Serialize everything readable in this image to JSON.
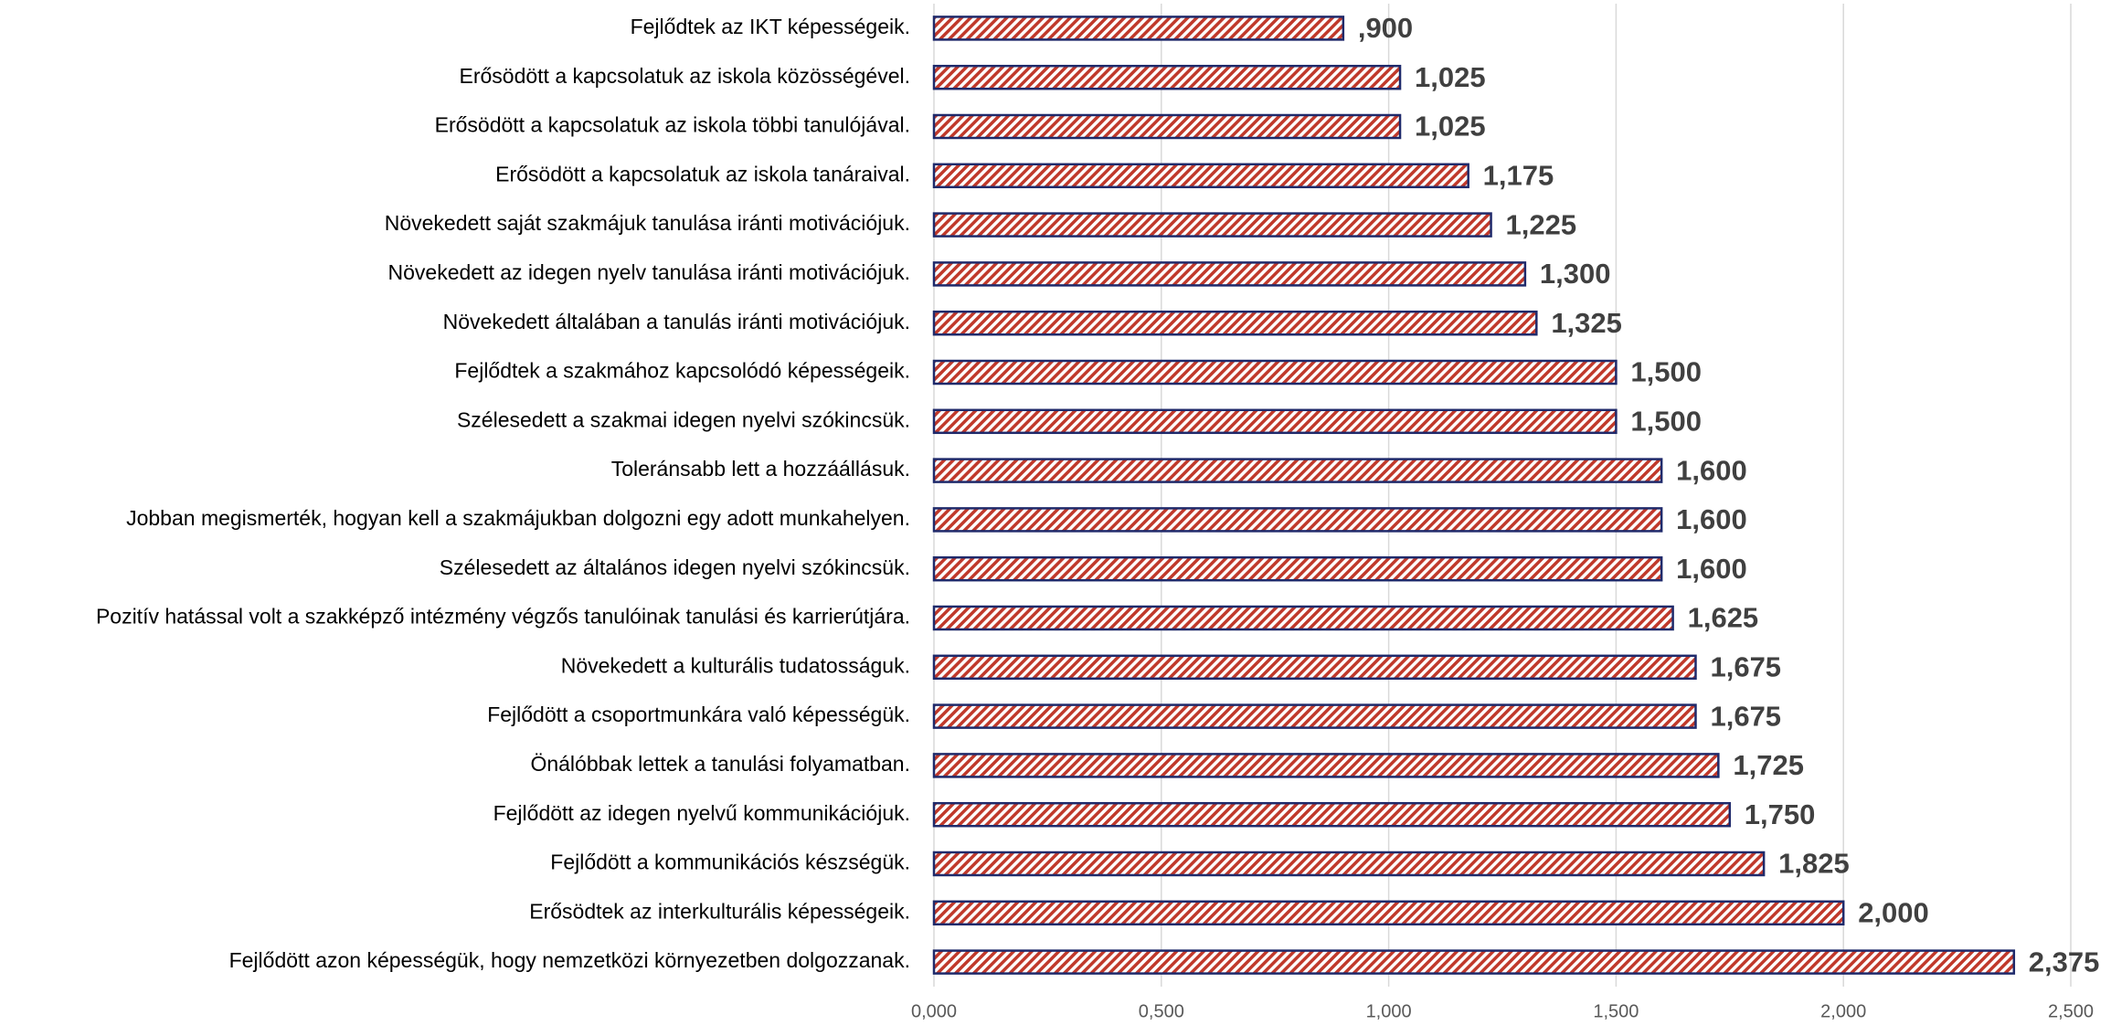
{
  "chart_data": {
    "type": "barh",
    "categories": [
      "Fejlődtek az IKT képességeik.",
      "Erősödött a kapcsolatuk az iskola közösségével.",
      "Erősödött a kapcsolatuk az iskola többi tanulójával.",
      "Erősödött a kapcsolatuk az iskola tanáraival.",
      "Növekedett saját szakmájuk tanulása iránti motivációjuk.",
      "Növekedett az idegen nyelv tanulása iránti motivációjuk.",
      "Növekedett általában a tanulás iránti motivációjuk.",
      "Fejlődtek a szakmához kapcsolódó képességeik.",
      "Szélesedett a szakmai idegen nyelvi szókincsük.",
      "Toleránsabb lett a hozzáállásuk.",
      "Jobban megismerték, hogyan kell a szakmájukban dolgozni egy adott munkahelyen.",
      "Szélesedett az általános idegen nyelvi szókincsük.",
      "Pozitív hatással volt a szakképző intézmény végzős tanulóinak tanulási és karrierútjára.",
      "Növekedett a kulturális tudatosságuk.",
      "Fejlődött a csoportmunkára való képességük.",
      "Önálóbbak lettek a tanulási folyamatban.",
      "Fejlődött az idegen nyelvű kommunikációjuk.",
      "Fejlődött a kommunikációs készségük.",
      "Erősödtek az interkulturális képességeik.",
      "Fejlődött azon képességük, hogy nemzetközi környezetben dolgozzanak."
    ],
    "values": [
      0.9,
      1.025,
      1.025,
      1.175,
      1.225,
      1.3,
      1.325,
      1.5,
      1.5,
      1.6,
      1.6,
      1.6,
      1.625,
      1.675,
      1.675,
      1.725,
      1.75,
      1.825,
      2.0,
      2.375
    ],
    "value_labels": [
      ",900",
      "1,025",
      "1,025",
      "1,175",
      "1,225",
      "1,300",
      "1,325",
      "1,500",
      "1,500",
      "1,600",
      "1,600",
      "1,600",
      "1,625",
      "1,675",
      "1,675",
      "1,725",
      "1,750",
      "1,825",
      "2,000",
      "2,375"
    ],
    "color": "#c0392b",
    "xlim": [
      0,
      2.5
    ],
    "xticks": [
      {
        "value": 0,
        "label": "0,000"
      },
      {
        "value": 0.5,
        "label": "0,500"
      },
      {
        "value": 1,
        "label": "1,000"
      },
      {
        "value": 1.5,
        "label": "1,500"
      },
      {
        "value": 2,
        "label": "2,000"
      },
      {
        "value": 2.5,
        "label": "2,500"
      }
    ],
    "grid": true
  }
}
